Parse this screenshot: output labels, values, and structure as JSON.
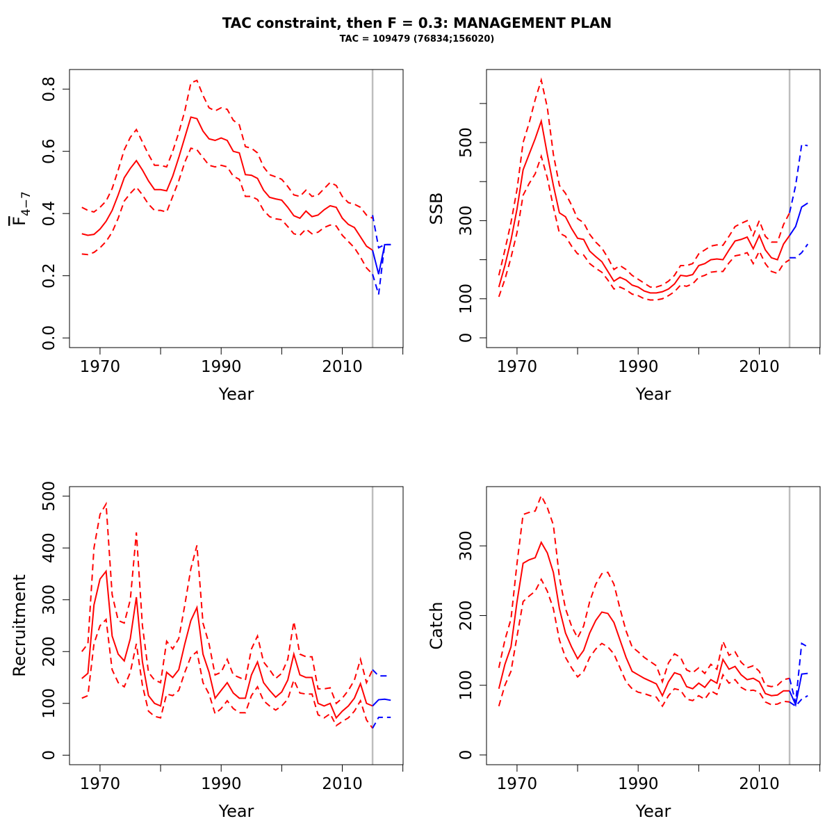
{
  "title": "TAC constraint, then F = 0.3: MANAGEMENT PLAN",
  "subtitle": "TAC = 109479 (76834;156020)",
  "chart_data": [
    {
      "type": "line",
      "xlabel": "Year",
      "ylabel": "F",
      "ylabel_sub": "4−7",
      "xlim": [
        1964.96,
        2020.04
      ],
      "xticks": [
        1970,
        1990,
        2010
      ],
      "xminorticks": [
        1980,
        2000,
        2020
      ],
      "ylim": [
        -0.031,
        0.863
      ],
      "yticks": [
        {
          "value": 0,
          "label": "0.0"
        },
        0.2,
        0.4,
        0.6,
        0.8
      ],
      "vline": {
        "value": 2015,
        "color": "#bebebe"
      },
      "x": [
        1967,
        1968,
        1969,
        1970,
        1971,
        1972,
        1973,
        1974,
        1975,
        1976,
        1977,
        1978,
        1979,
        1980,
        1981,
        1982,
        1983,
        1984,
        1985,
        1986,
        1987,
        1988,
        1989,
        1990,
        1991,
        1992,
        1993,
        1994,
        1995,
        1996,
        1997,
        1998,
        1999,
        2000,
        2001,
        2002,
        2003,
        2004,
        2005,
        2006,
        2007,
        2008,
        2009,
        2010,
        2011,
        2012,
        2013,
        2014,
        2015
      ],
      "series": [
        {
          "color": "#ff0000",
          "dash": false,
          "values": [
            0.335,
            0.33,
            0.333,
            0.35,
            0.375,
            0.41,
            0.46,
            0.515,
            0.545,
            0.57,
            0.54,
            0.505,
            0.477,
            0.477,
            0.473,
            0.52,
            0.58,
            0.645,
            0.71,
            0.705,
            0.665,
            0.64,
            0.635,
            0.643,
            0.635,
            0.6,
            0.595,
            0.525,
            0.523,
            0.513,
            0.475,
            0.452,
            0.447,
            0.443,
            0.42,
            0.393,
            0.385,
            0.408,
            0.39,
            0.395,
            0.412,
            0.425,
            0.42,
            0.385,
            0.365,
            0.355,
            0.325,
            0.295,
            0.282
          ]
        },
        {
          "color": "#ff0000",
          "dash": true,
          "values": [
            0.42,
            0.41,
            0.405,
            0.42,
            0.44,
            0.48,
            0.54,
            0.605,
            0.645,
            0.67,
            0.63,
            0.59,
            0.555,
            0.555,
            0.55,
            0.6,
            0.66,
            0.73,
            0.82,
            0.828,
            0.78,
            0.74,
            0.73,
            0.74,
            0.735,
            0.7,
            0.685,
            0.615,
            0.61,
            0.595,
            0.55,
            0.525,
            0.518,
            0.51,
            0.487,
            0.46,
            0.455,
            0.475,
            0.455,
            0.46,
            0.48,
            0.5,
            0.49,
            0.455,
            0.435,
            0.43,
            0.42,
            0.395,
            0.385
          ]
        },
        {
          "color": "#ff0000",
          "dash": true,
          "values": [
            0.27,
            0.268,
            0.275,
            0.29,
            0.31,
            0.34,
            0.385,
            0.44,
            0.465,
            0.485,
            0.46,
            0.43,
            0.41,
            0.41,
            0.405,
            0.455,
            0.505,
            0.565,
            0.61,
            0.605,
            0.58,
            0.555,
            0.55,
            0.555,
            0.55,
            0.52,
            0.51,
            0.455,
            0.455,
            0.445,
            0.41,
            0.39,
            0.383,
            0.38,
            0.358,
            0.335,
            0.33,
            0.35,
            0.335,
            0.34,
            0.355,
            0.363,
            0.36,
            0.33,
            0.31,
            0.29,
            0.26,
            0.225,
            0.205
          ]
        },
        {
          "color": "#0000ff",
          "dash": false,
          "x": [
            2015,
            2016,
            2017,
            2018
          ],
          "values": [
            0.282,
            0.205,
            0.3,
            0.3
          ]
        },
        {
          "color": "#0000ff",
          "dash": true,
          "x": [
            2015,
            2016,
            2017,
            2018
          ],
          "values": [
            0.395,
            0.29,
            0.3,
            0.3
          ]
        },
        {
          "color": "#0000ff",
          "dash": true,
          "x": [
            2015,
            2016,
            2017,
            2018
          ],
          "values": [
            0.205,
            0.14,
            0.3,
            0.3
          ]
        }
      ]
    },
    {
      "type": "line",
      "xlabel": "Year",
      "ylabel": "SSB",
      "xlim": [
        1964.96,
        2020.04
      ],
      "xticks": [
        1970,
        1990,
        2010
      ],
      "xminorticks": [
        1980,
        2000,
        2020
      ],
      "ylim": [
        -25,
        687
      ],
      "yticks": [
        0,
        100,
        300,
        500
      ],
      "yminorticks": [
        200,
        400,
        600
      ],
      "vline": {
        "value": 2015,
        "color": "#bebebe"
      },
      "x": [
        1967,
        1968,
        1969,
        1970,
        1971,
        1972,
        1973,
        1974,
        1975,
        1976,
        1977,
        1978,
        1979,
        1980,
        1981,
        1982,
        1983,
        1984,
        1985,
        1986,
        1987,
        1988,
        1989,
        1990,
        1991,
        1992,
        1993,
        1994,
        1995,
        1996,
        1997,
        1998,
        1999,
        2000,
        2001,
        2002,
        2003,
        2004,
        2005,
        2006,
        2007,
        2008,
        2009,
        2010,
        2011,
        2012,
        2013,
        2014,
        2015
      ],
      "series": [
        {
          "color": "#ff0000",
          "dash": false,
          "values": [
            130,
            185,
            250,
            330,
            430,
            470,
            510,
            555,
            470,
            390,
            320,
            310,
            280,
            255,
            252,
            222,
            208,
            195,
            170,
            145,
            155,
            148,
            135,
            130,
            120,
            115,
            115,
            118,
            125,
            138,
            160,
            158,
            162,
            185,
            190,
            200,
            202,
            200,
            225,
            248,
            252,
            258,
            228,
            262,
            225,
            205,
            200,
            240,
            262
          ]
        },
        {
          "color": "#ff0000",
          "dash": true,
          "values": [
            160,
            225,
            295,
            380,
            500,
            550,
            610,
            660,
            590,
            470,
            390,
            370,
            340,
            305,
            295,
            265,
            245,
            230,
            205,
            175,
            185,
            175,
            160,
            150,
            140,
            130,
            130,
            135,
            145,
            160,
            185,
            185,
            190,
            215,
            225,
            235,
            238,
            237,
            260,
            285,
            293,
            300,
            262,
            300,
            260,
            245,
            245,
            290,
            320
          ]
        },
        {
          "color": "#ff0000",
          "dash": true,
          "values": [
            105,
            150,
            205,
            270,
            365,
            395,
            420,
            465,
            410,
            335,
            268,
            260,
            235,
            215,
            212,
            190,
            178,
            168,
            148,
            125,
            130,
            123,
            112,
            108,
            100,
            97,
            97,
            100,
            108,
            118,
            135,
            132,
            138,
            155,
            160,
            168,
            170,
            170,
            192,
            210,
            213,
            218,
            190,
            222,
            190,
            170,
            165,
            190,
            200
          ]
        },
        {
          "color": "#0000ff",
          "dash": false,
          "x": [
            2015,
            2016,
            2017,
            2018
          ],
          "values": [
            262,
            285,
            335,
            345
          ]
        },
        {
          "color": "#0000ff",
          "dash": true,
          "x": [
            2015,
            2016,
            2017,
            2018
          ],
          "values": [
            320,
            390,
            495,
            492
          ]
        },
        {
          "color": "#0000ff",
          "dash": true,
          "x": [
            2015,
            2016,
            2017,
            2018
          ],
          "values": [
            205,
            205,
            218,
            240
          ]
        }
      ]
    },
    {
      "type": "line",
      "xlabel": "Year",
      "ylabel": "Recruitment",
      "xlim": [
        1964.96,
        2020.04
      ],
      "xticks": [
        1970,
        1990,
        2010
      ],
      "xminorticks": [
        1980,
        2000,
        2020
      ],
      "ylim": [
        -18.4,
        518.4
      ],
      "yticks": [
        0,
        100,
        200,
        300,
        400,
        500
      ],
      "vline": {
        "value": 2015,
        "color": "#bebebe"
      },
      "x": [
        1967,
        1968,
        1969,
        1970,
        1971,
        1972,
        1973,
        1974,
        1975,
        1976,
        1977,
        1978,
        1979,
        1980,
        1981,
        1982,
        1983,
        1984,
        1985,
        1986,
        1987,
        1988,
        1989,
        1990,
        1991,
        1992,
        1993,
        1994,
        1995,
        1996,
        1997,
        1998,
        1999,
        2000,
        2001,
        2002,
        2003,
        2004,
        2005,
        2006,
        2007,
        2008,
        2009,
        2010,
        2011,
        2012,
        2013,
        2014,
        2015
      ],
      "series": [
        {
          "color": "#ff0000",
          "dash": false,
          "values": [
            148,
            158,
            290,
            340,
            355,
            230,
            195,
            182,
            225,
            305,
            180,
            115,
            100,
            95,
            160,
            150,
            165,
            215,
            260,
            285,
            195,
            160,
            110,
            125,
            140,
            120,
            110,
            110,
            155,
            180,
            140,
            125,
            112,
            122,
            145,
            195,
            155,
            150,
            150,
            100,
            95,
            100,
            72,
            85,
            95,
            110,
            138,
            100,
            95
          ]
        },
        {
          "color": "#ff0000",
          "dash": true,
          "values": [
            200,
            215,
            400,
            465,
            485,
            310,
            260,
            255,
            300,
            430,
            250,
            160,
            145,
            140,
            220,
            205,
            225,
            290,
            360,
            405,
            255,
            215,
            155,
            160,
            185,
            155,
            150,
            145,
            205,
            230,
            180,
            165,
            148,
            158,
            185,
            258,
            195,
            190,
            190,
            128,
            128,
            130,
            100,
            110,
            125,
            145,
            185,
            140,
            165
          ]
        },
        {
          "color": "#ff0000",
          "dash": true,
          "values": [
            110,
            115,
            215,
            250,
            262,
            165,
            140,
            132,
            160,
            215,
            135,
            85,
            75,
            72,
            118,
            115,
            125,
            160,
            190,
            200,
            140,
            118,
            80,
            90,
            105,
            90,
            82,
            82,
            115,
            132,
            105,
            95,
            87,
            95,
            108,
            145,
            120,
            118,
            118,
            78,
            72,
            80,
            57,
            65,
            72,
            85,
            105,
            68,
            52
          ]
        },
        {
          "color": "#0000ff",
          "dash": false,
          "x": [
            2015,
            2016,
            2017,
            2018
          ],
          "values": [
            95,
            107,
            108,
            106
          ]
        },
        {
          "color": "#0000ff",
          "dash": true,
          "x": [
            2015,
            2016,
            2017,
            2018
          ],
          "values": [
            165,
            153,
            153,
            153
          ]
        },
        {
          "color": "#0000ff",
          "dash": true,
          "x": [
            2015,
            2016,
            2017,
            2018
          ],
          "values": [
            52,
            73,
            73,
            73
          ]
        }
      ]
    },
    {
      "type": "line",
      "xlabel": "Year",
      "ylabel": "Catch",
      "xlim": [
        1964.96,
        2020.04
      ],
      "xticks": [
        1970,
        1990,
        2010
      ],
      "xminorticks": [
        1980,
        2000,
        2020
      ],
      "ylim": [
        -14,
        385
      ],
      "yticks": [
        0,
        100,
        200,
        300
      ],
      "vline": {
        "value": 2015,
        "color": "#bebebe"
      },
      "x": [
        1967,
        1968,
        1969,
        1970,
        1971,
        1972,
        1973,
        1974,
        1975,
        1976,
        1977,
        1978,
        1979,
        1980,
        1981,
        1982,
        1983,
        1984,
        1985,
        1986,
        1987,
        1988,
        1989,
        1990,
        1991,
        1992,
        1993,
        1994,
        1995,
        1996,
        1997,
        1998,
        1999,
        2000,
        2001,
        2002,
        2003,
        2004,
        2005,
        2006,
        2007,
        2008,
        2009,
        2010,
        2011,
        2012,
        2013,
        2014,
        2015
      ],
      "series": [
        {
          "color": "#ff0000",
          "dash": false,
          "values": [
            95,
            130,
            155,
            220,
            275,
            280,
            283,
            305,
            290,
            262,
            210,
            175,
            155,
            138,
            150,
            175,
            193,
            205,
            203,
            190,
            165,
            140,
            120,
            115,
            110,
            106,
            102,
            85,
            105,
            118,
            115,
            98,
            95,
            103,
            97,
            108,
            103,
            137,
            123,
            127,
            115,
            108,
            110,
            105,
            88,
            85,
            86,
            92,
            92
          ]
        },
        {
          "color": "#ff0000",
          "dash": true,
          "values": [
            125,
            165,
            195,
            275,
            345,
            348,
            350,
            372,
            355,
            330,
            255,
            210,
            185,
            168,
            185,
            220,
            245,
            260,
            262,
            245,
            210,
            178,
            155,
            148,
            140,
            134,
            128,
            105,
            132,
            145,
            140,
            122,
            118,
            125,
            117,
            130,
            123,
            163,
            143,
            148,
            133,
            125,
            128,
            120,
            100,
            98,
            100,
            108,
            110
          ]
        },
        {
          "color": "#ff0000",
          "dash": true,
          "values": [
            70,
            100,
            120,
            170,
            220,
            228,
            235,
            252,
            235,
            210,
            165,
            140,
            125,
            112,
            120,
            140,
            152,
            160,
            155,
            145,
            125,
            105,
            95,
            90,
            88,
            85,
            83,
            70,
            85,
            95,
            93,
            80,
            78,
            85,
            80,
            92,
            87,
            115,
            103,
            108,
            97,
            92,
            93,
            90,
            76,
            72,
            73,
            77,
            76
          ]
        },
        {
          "color": "#0000ff",
          "dash": false,
          "x": [
            2015,
            2016,
            2017,
            2018
          ],
          "values": [
            92,
            72,
            116,
            117
          ]
        },
        {
          "color": "#0000ff",
          "dash": true,
          "x": [
            2015,
            2016,
            2017,
            2018
          ],
          "values": [
            110,
            75,
            160,
            155
          ]
        },
        {
          "color": "#0000ff",
          "dash": true,
          "x": [
            2015,
            2016,
            2017,
            2018
          ],
          "values": [
            76,
            70,
            80,
            85
          ]
        }
      ]
    }
  ]
}
